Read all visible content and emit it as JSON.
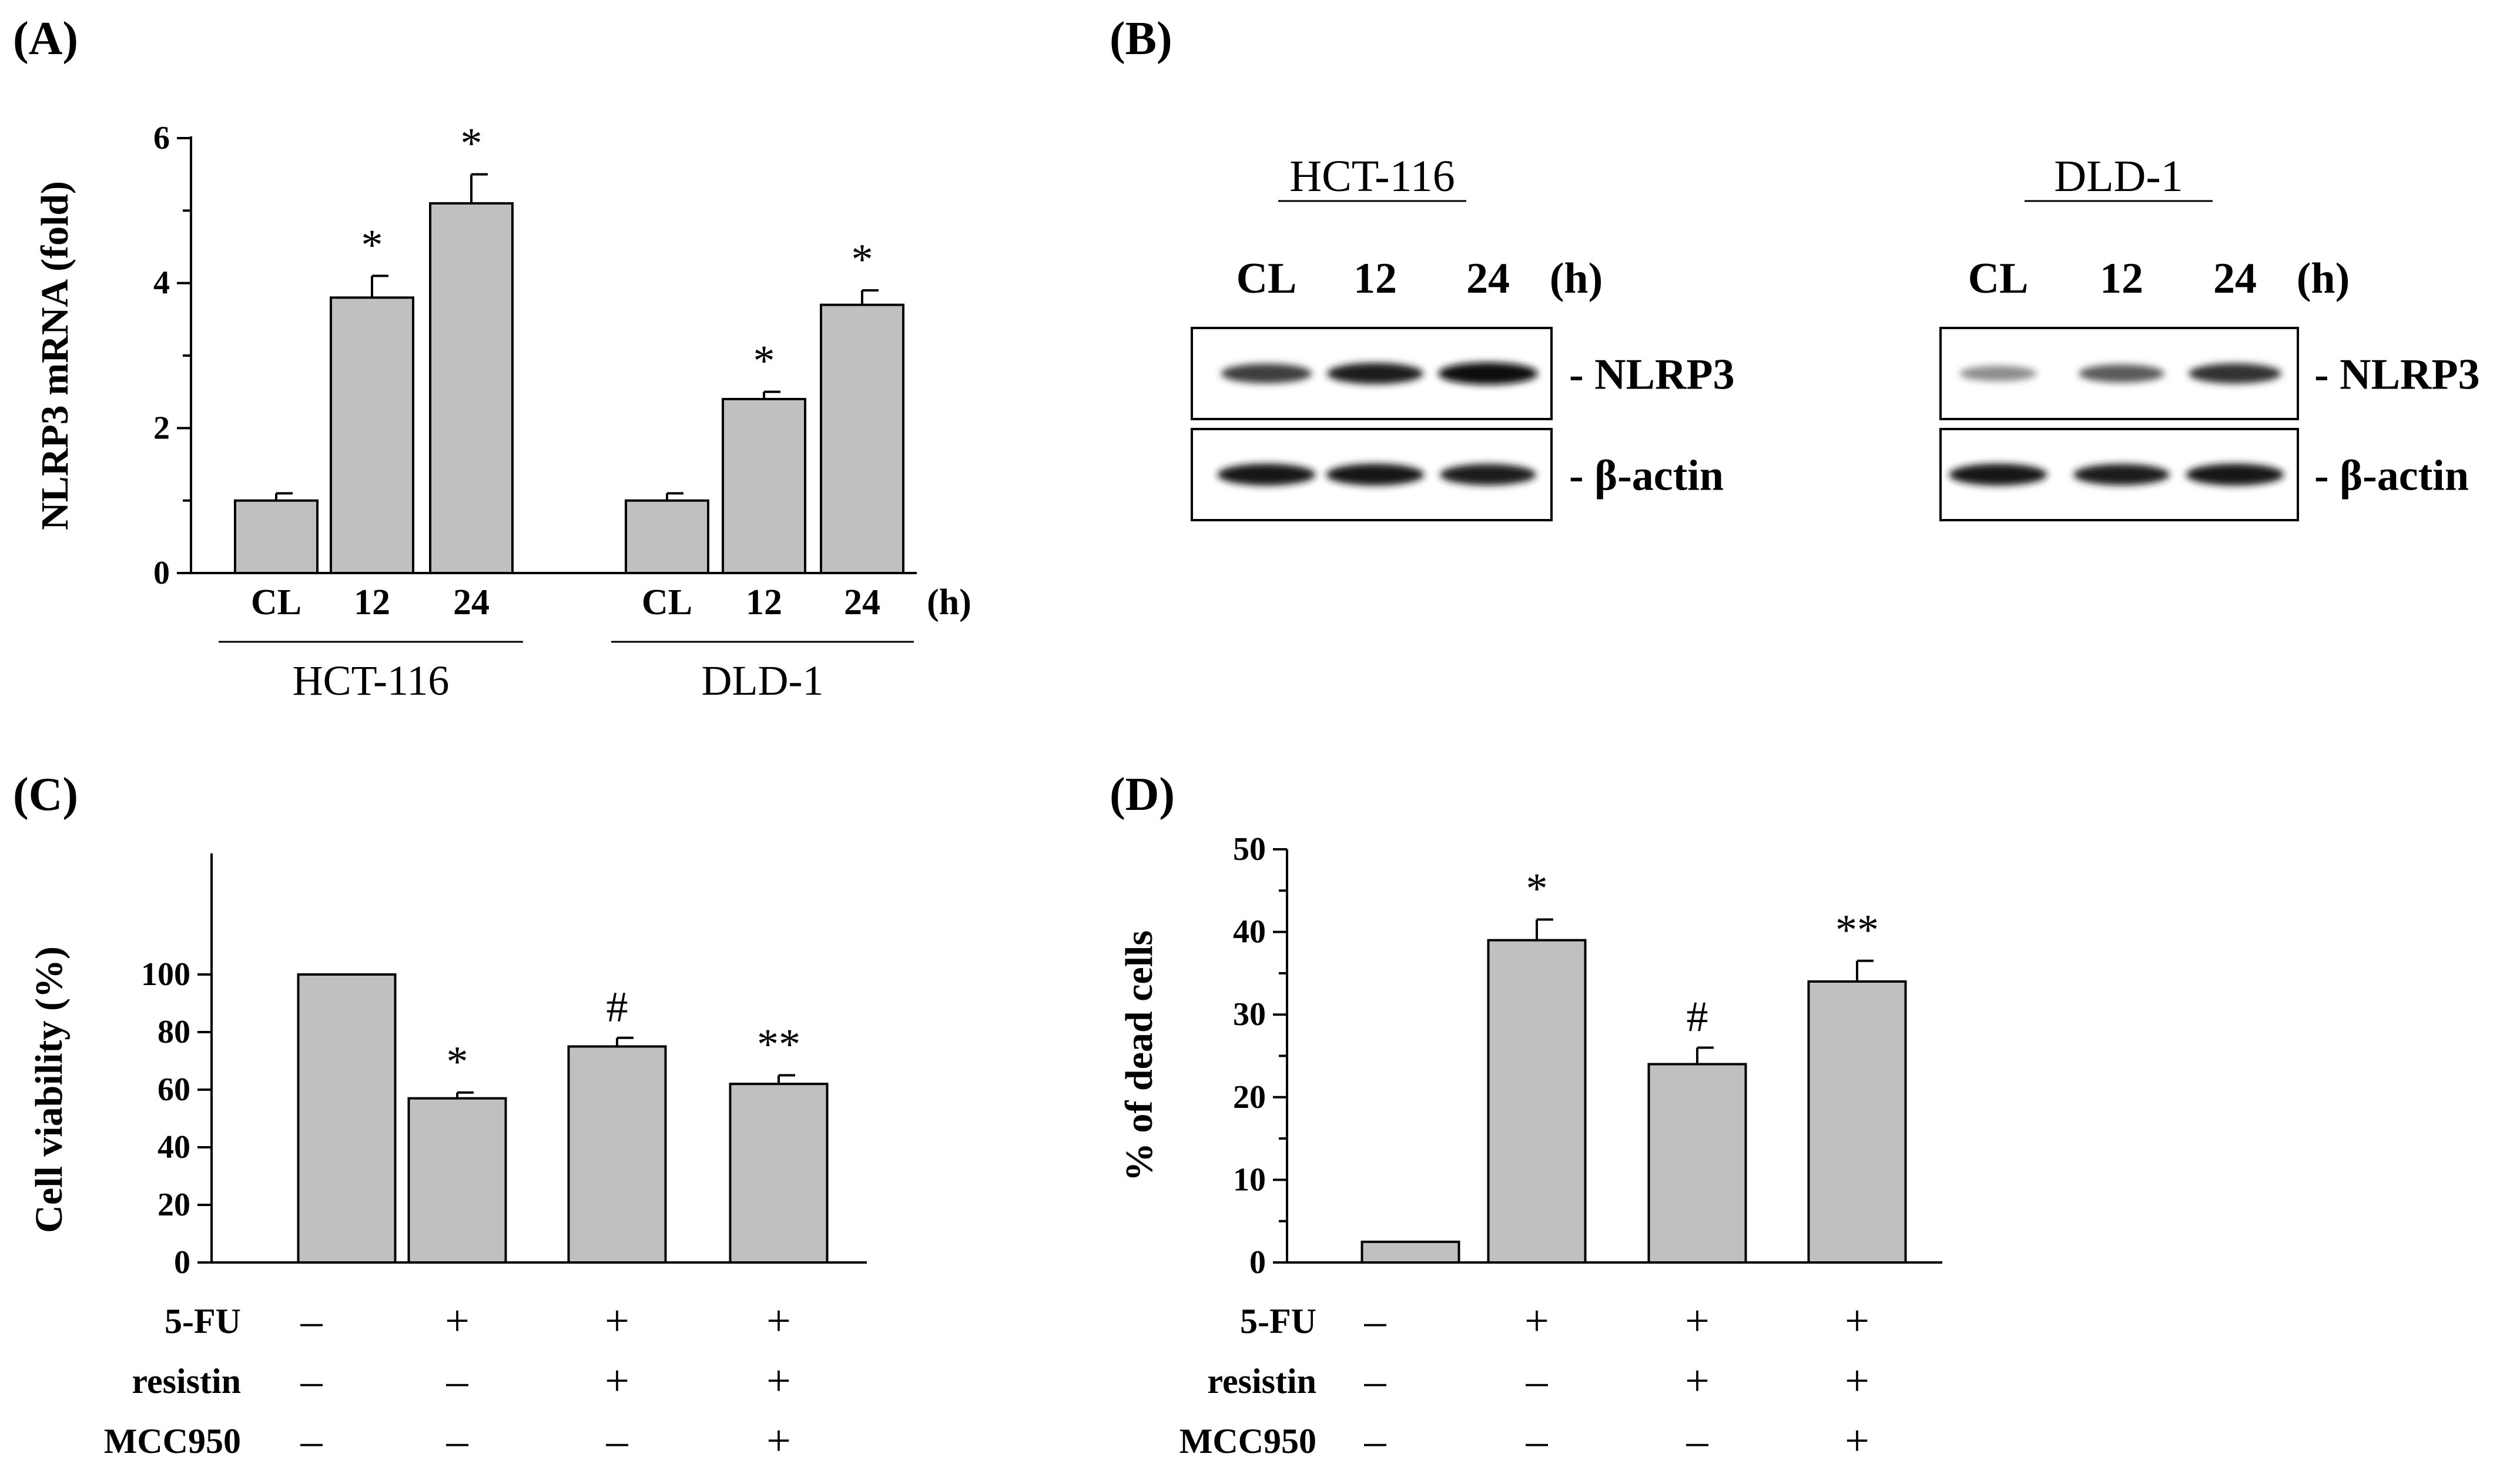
{
  "colors": {
    "bar": "#c0c0c0",
    "axis": "#000000",
    "background": "#ffffff"
  },
  "panels": {
    "A": {
      "label": "(A)"
    },
    "B": {
      "label": "(B)",
      "blots": [
        {
          "cell_line": "HCT-116",
          "lanes": [
            "CL",
            "12",
            "24"
          ],
          "unit": "(h)",
          "rows": [
            {
              "label": "- NLRP3",
              "intensity": [
                0.75,
                0.9,
                1.0
              ]
            },
            {
              "label": "- β-actin",
              "intensity": [
                0.95,
                0.95,
                0.9
              ]
            }
          ]
        },
        {
          "cell_line": "DLD-1",
          "lanes": [
            "CL",
            "12",
            "24"
          ],
          "unit": "(h)",
          "rows": [
            {
              "label": "- NLRP3",
              "intensity": [
                0.35,
                0.6,
                0.8
              ]
            },
            {
              "label": "- β-actin",
              "intensity": [
                0.95,
                0.9,
                0.95
              ]
            }
          ]
        }
      ]
    },
    "C": {
      "label": "(C)"
    },
    "D": {
      "label": "(D)"
    }
  },
  "chart_data": [
    {
      "panel": "A",
      "type": "bar",
      "ylabel": "NLRP3 mRNA (fold)",
      "ylim": [
        0,
        6
      ],
      "yticks": [
        "0",
        "2",
        "4",
        "6"
      ],
      "groups": [
        {
          "name": "HCT-116",
          "categories": [
            "CL",
            "12",
            "24"
          ],
          "values": [
            1.0,
            3.8,
            5.1
          ],
          "errors": [
            0.1,
            0.3,
            0.4
          ],
          "annotations": [
            "",
            "*",
            "*"
          ]
        },
        {
          "name": "DLD-1",
          "categories": [
            "CL",
            "12",
            "24"
          ],
          "values": [
            1.0,
            2.4,
            3.7
          ],
          "errors": [
            0.1,
            0.1,
            0.2
          ],
          "annotations": [
            "",
            "*",
            "*"
          ]
        }
      ],
      "x_unit": "(h)"
    },
    {
      "panel": "C",
      "type": "bar",
      "ylabel": "Cell viability (%)",
      "ylim": [
        0,
        120
      ],
      "yticks": [
        "0",
        "20",
        "40",
        "60",
        "80",
        "100"
      ],
      "values": [
        100,
        57,
        75,
        62
      ],
      "errors": [
        0,
        2,
        3,
        3
      ],
      "annotations": [
        "",
        "*",
        "#",
        "**"
      ],
      "conditions": [
        {
          "name": "5-FU",
          "signs": [
            "–",
            "+",
            "+",
            "+"
          ]
        },
        {
          "name": "resistin",
          "signs": [
            "–",
            "–",
            "+",
            "+"
          ]
        },
        {
          "name": "MCC950",
          "signs": [
            "–",
            "–",
            "–",
            "+"
          ]
        }
      ]
    },
    {
      "panel": "D",
      "type": "bar",
      "ylabel": "% of dead cells",
      "ylim": [
        0,
        50
      ],
      "yticks": [
        "0",
        "10",
        "20",
        "30",
        "40",
        "50"
      ],
      "values": [
        2.5,
        39,
        24,
        34
      ],
      "errors": [
        0,
        2.5,
        2,
        2.5
      ],
      "annotations": [
        "",
        "*",
        "#",
        "**"
      ],
      "conditions": [
        {
          "name": "5-FU",
          "signs": [
            "–",
            "+",
            "+",
            "+"
          ]
        },
        {
          "name": "resistin",
          "signs": [
            "–",
            "–",
            "+",
            "+"
          ]
        },
        {
          "name": "MCC950",
          "signs": [
            "–",
            "–",
            "–",
            "+"
          ]
        }
      ]
    }
  ]
}
